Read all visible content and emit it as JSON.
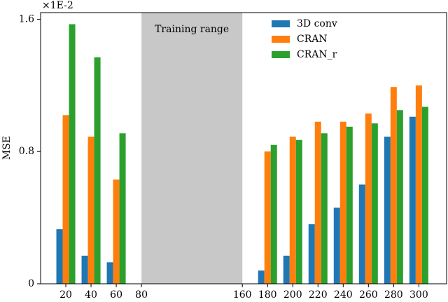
{
  "chart_data": {
    "type": "bar",
    "x": [
      20,
      40,
      60,
      180,
      200,
      220,
      240,
      260,
      280,
      300
    ],
    "series": [
      {
        "name": "3D conv",
        "color": "#1f77b4",
        "values": [
          0.33,
          0.17,
          0.13,
          0.08,
          0.17,
          0.36,
          0.46,
          0.6,
          0.89,
          1.01
        ]
      },
      {
        "name": "CRAN",
        "color": "#ff7f0e",
        "values": [
          1.02,
          0.89,
          0.63,
          0.8,
          0.89,
          0.98,
          0.98,
          1.03,
          1.19,
          1.2
        ]
      },
      {
        "name": "CRAN_r",
        "color": "#2ca02c",
        "values": [
          1.57,
          1.37,
          0.91,
          0.84,
          0.87,
          0.91,
          0.95,
          0.97,
          1.05,
          1.07
        ]
      }
    ],
    "xlim": [
      0,
      322
    ],
    "xticks": [
      20,
      40,
      60,
      80,
      160,
      180,
      200,
      220,
      240,
      260,
      280,
      300
    ],
    "ylim": [
      0,
      1.64
    ],
    "yticks": [
      0,
      0.8,
      1.6
    ],
    "y_label": "MSE",
    "y_multiplier": "×1E-2",
    "shade": [
      80,
      160
    ],
    "shade_color": "#c8c8c8",
    "annotation": "Training range",
    "legend": "upper right"
  }
}
